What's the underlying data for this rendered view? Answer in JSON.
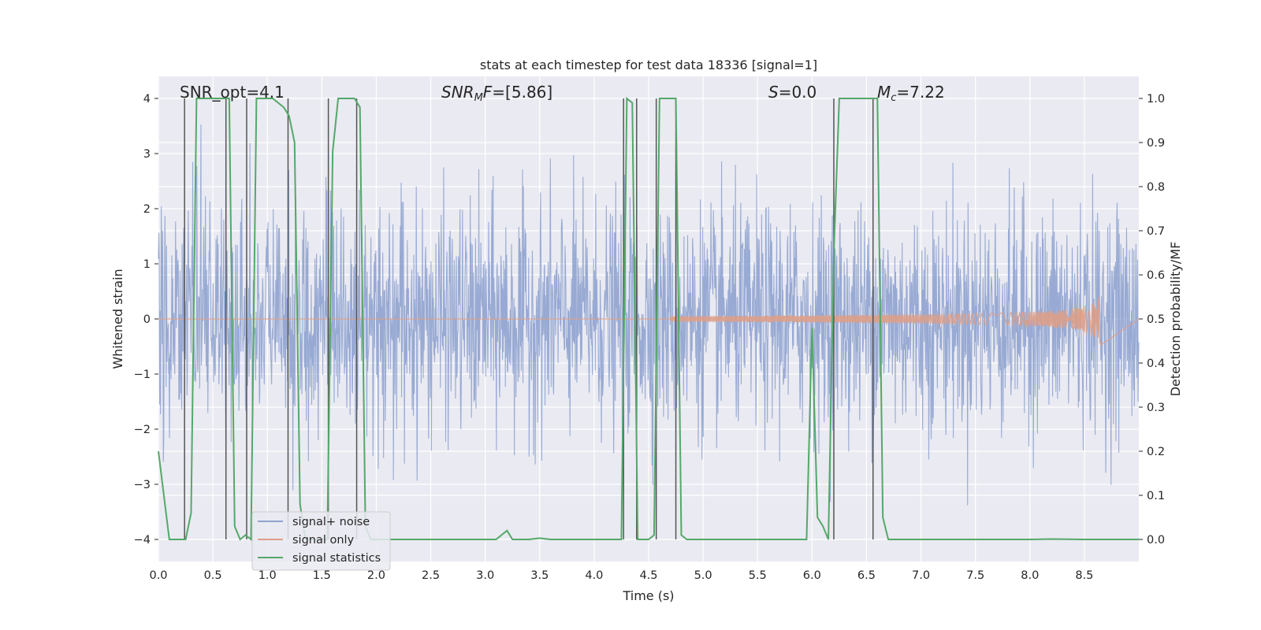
{
  "chart_data": {
    "type": "line",
    "title": "stats at each timestep for test data 18336 [signal=1]",
    "xlabel": "Time (s)",
    "ylabel": "Whitened strain",
    "y2label": "Detection probability/MF",
    "xlim": [
      0.0,
      9.0
    ],
    "ylim": [
      -4.4,
      4.4
    ],
    "y2lim": [
      -0.05,
      1.05
    ],
    "grid": true,
    "legend_position": "lower-left",
    "x_ticks": [
      "0.0",
      "0.5",
      "1.0",
      "1.5",
      "2.0",
      "2.5",
      "3.0",
      "3.5",
      "4.0",
      "4.5",
      "5.0",
      "5.5",
      "6.0",
      "6.5",
      "7.0",
      "7.5",
      "8.0",
      "8.5"
    ],
    "y_ticks": [
      "−4",
      "−3",
      "−2",
      "−1",
      "0",
      "1",
      "2",
      "3",
      "4"
    ],
    "y2_ticks": [
      "0.0",
      "0.1",
      "0.2",
      "0.3",
      "0.4",
      "0.5",
      "0.6",
      "0.7",
      "0.8",
      "0.9",
      "1.0"
    ],
    "annotations": [
      {
        "key": "snr_opt",
        "text": "SNR_opt=4.1",
        "x": 0.2
      },
      {
        "key": "snr_mf",
        "text": "SNRMF=[5.86]",
        "x": 2.6
      },
      {
        "key": "s",
        "text": "S=0.0",
        "x": 5.6
      },
      {
        "key": "mc",
        "text": "Mc=7.22",
        "x": 6.6
      }
    ],
    "series": [
      {
        "name": "signal+ noise",
        "color": "#8fa3cf",
        "kind": "noise",
        "amplitude_sigma": 1.0,
        "x_range": [
          0.0,
          9.0
        ]
      },
      {
        "name": "signal only",
        "color": "#dd9f88",
        "kind": "chirp",
        "start": 4.7,
        "end": 8.65,
        "peak_amplitude": 0.6
      },
      {
        "name": "signal statistics",
        "color": "#55a868",
        "axis": "y2",
        "x": [
          0.0,
          0.05,
          0.1,
          0.15,
          0.2,
          0.25,
          0.3,
          0.35,
          0.4,
          0.45,
          0.5,
          0.55,
          0.6,
          0.65,
          0.7,
          0.75,
          0.8,
          0.85,
          0.9,
          0.95,
          1.0,
          1.05,
          1.1,
          1.15,
          1.2,
          1.25,
          1.3,
          1.35,
          1.4,
          1.45,
          1.5,
          1.55,
          1.6,
          1.65,
          1.7,
          1.75,
          1.8,
          1.85,
          1.9,
          1.95,
          2.0,
          2.5,
          3.0,
          3.1,
          3.15,
          3.2,
          3.25,
          3.3,
          3.4,
          3.5,
          3.6,
          3.8,
          4.0,
          4.2,
          4.25,
          4.3,
          4.35,
          4.4,
          4.45,
          4.5,
          4.55,
          4.6,
          4.65,
          4.7,
          4.75,
          4.8,
          4.85,
          4.9,
          5.0,
          5.5,
          5.9,
          5.95,
          6.0,
          6.05,
          6.1,
          6.15,
          6.2,
          6.25,
          6.3,
          6.35,
          6.4,
          6.45,
          6.5,
          6.55,
          6.6,
          6.65,
          6.7,
          7.0,
          8.0,
          8.2,
          8.5,
          9.0
        ],
        "y": [
          0.2,
          0.1,
          0.0,
          0.0,
          0.0,
          0.0,
          0.06,
          1.0,
          1.0,
          1.0,
          1.0,
          1.0,
          1.0,
          1.0,
          0.03,
          0.0,
          0.01,
          0.0,
          1.0,
          1.0,
          1.0,
          1.0,
          0.99,
          0.98,
          0.96,
          0.9,
          0.08,
          0.0,
          0.0,
          0.0,
          0.0,
          0.0,
          0.88,
          1.0,
          1.0,
          1.0,
          1.0,
          0.98,
          0.03,
          0.0,
          0.0,
          0.0,
          0.0,
          0.0,
          0.01,
          0.02,
          0.0,
          0.0,
          0.0,
          0.003,
          0.0,
          0.0,
          0.0,
          0.0,
          0.0,
          1.0,
          0.99,
          0.0,
          0.0,
          0.0,
          0.01,
          1.0,
          1.0,
          1.0,
          1.0,
          0.01,
          0.0,
          0.0,
          0.0,
          0.0,
          0.0,
          0.0,
          0.48,
          0.05,
          0.03,
          0.0,
          0.65,
          1.0,
          1.0,
          1.0,
          1.0,
          1.0,
          1.0,
          1.0,
          1.0,
          0.05,
          0.0,
          0.0,
          0.0,
          0.001,
          0.0,
          0.0
        ]
      },
      {
        "name": "",
        "color": "#555555",
        "kind": "vlines",
        "x": [
          0.24,
          0.62,
          0.81,
          1.19,
          1.56,
          1.82,
          4.27,
          4.39,
          4.57,
          4.75,
          6.2,
          6.56
        ]
      }
    ]
  }
}
